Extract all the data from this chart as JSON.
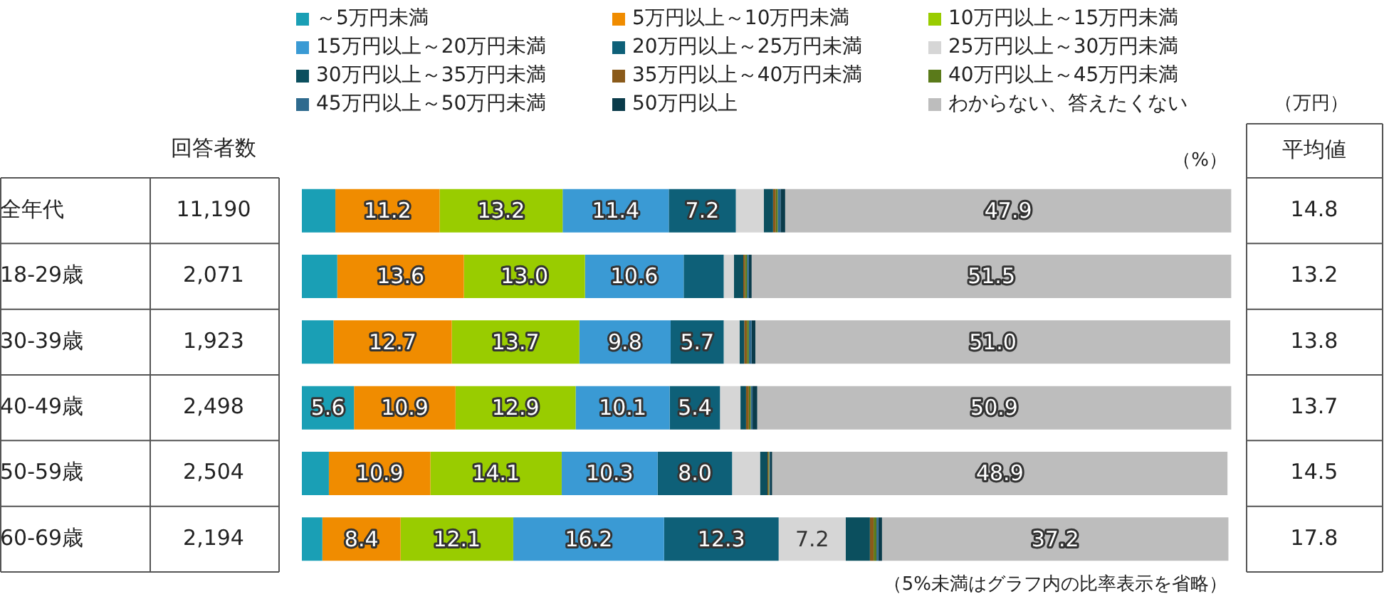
{
  "chart_data": {
    "type": "bar",
    "orientation": "horizontal",
    "stacked": true,
    "tick_labels": "y",
    "grid": false,
    "legend": "top",
    "categories": [
      "全年代",
      "18-29歳",
      "30-39歳",
      "40-49歳",
      "50-59歳",
      "60-69歳"
    ],
    "series": [
      {
        "name": "～5万円未満",
        "color": "#1a9fb5",
        "values": [
          3.6,
          3.8,
          3.4,
          5.6,
          2.9,
          2.2
        ],
        "value_labels": [
          null,
          null,
          null,
          "5.6",
          null,
          null
        ]
      },
      {
        "name": "5万円以上～10万円未満",
        "color": "#f08c00",
        "values": [
          11.2,
          13.6,
          12.7,
          10.9,
          10.9,
          8.4
        ],
        "value_labels": [
          "11.2",
          "13.6",
          "12.7",
          "10.9",
          "10.9",
          "8.4"
        ]
      },
      {
        "name": "10万円以上～15万円未満",
        "color": "#99cc00",
        "values": [
          13.2,
          13.0,
          13.7,
          12.9,
          14.1,
          12.1
        ],
        "value_labels": [
          "13.2",
          "13.0",
          "13.7",
          "12.9",
          "14.1",
          "12.1"
        ]
      },
      {
        "name": "15万円以上～20万円未満",
        "color": "#3a9ad4",
        "values": [
          11.4,
          10.6,
          9.8,
          10.1,
          10.3,
          16.2
        ],
        "value_labels": [
          "11.4",
          "10.6",
          "9.8",
          "10.1",
          "10.3",
          "16.2"
        ]
      },
      {
        "name": "20万円以上～25万円未満",
        "color": "#0e6078",
        "values": [
          7.2,
          4.3,
          5.7,
          5.4,
          8.0,
          12.3
        ],
        "value_labels": [
          "7.2",
          null,
          "5.7",
          "5.4",
          "8.0",
          "12.3"
        ]
      },
      {
        "name": "25万円以上～30万円未満",
        "color": "#d6d6d6",
        "values": [
          3.0,
          1.1,
          1.7,
          2.2,
          3.0,
          7.2
        ],
        "value_labels": [
          null,
          null,
          null,
          null,
          null,
          "7.2"
        ]
      },
      {
        "name": "30万円以上～35万円未満",
        "color": "#0b4f5e",
        "values": [
          1.0,
          1.0,
          0.5,
          0.6,
          0.8,
          2.6
        ],
        "value_labels": [
          null,
          null,
          null,
          null,
          null,
          null
        ]
      },
      {
        "name": "35万円以上～40万円未満",
        "color": "#8a5a1a",
        "values": [
          0.3,
          0.2,
          0.3,
          0.3,
          0.1,
          0.4
        ],
        "value_labels": [
          null,
          null,
          null,
          null,
          null,
          null
        ]
      },
      {
        "name": "40万円以上～45万円未満",
        "color": "#5a7a1a",
        "values": [
          0.2,
          0.2,
          0.2,
          0.2,
          0.1,
          0.3
        ],
        "value_labels": [
          null,
          null,
          null,
          null,
          null,
          null
        ]
      },
      {
        "name": "45万円以上～50万円未満",
        "color": "#2e6a8e",
        "values": [
          0.3,
          0.2,
          0.3,
          0.2,
          0.1,
          0.2
        ],
        "value_labels": [
          null,
          null,
          null,
          null,
          null,
          null
        ]
      },
      {
        "name": "50万円以上",
        "color": "#0a3b4a",
        "values": [
          0.5,
          0.3,
          0.4,
          0.5,
          0.2,
          0.4
        ],
        "value_labels": [
          null,
          null,
          null,
          null,
          null,
          null
        ]
      },
      {
        "name": "わからない、答えたくない",
        "color": "#bdbdbd",
        "values": [
          47.9,
          51.5,
          51.0,
          50.9,
          48.9,
          37.2
        ],
        "value_labels": [
          "47.9",
          "51.5",
          "51.0",
          "50.9",
          "48.9",
          "37.2"
        ]
      }
    ],
    "annotations": [
      "回答者数",
      "11,190",
      "2,071",
      "1,923",
      "2,498",
      "2,504",
      "2,194",
      "（万円）",
      "平均値",
      "14.8",
      "13.2",
      "13.8",
      "13.7",
      "14.5",
      "17.8",
      "（%）",
      "（5%未満はグラフ内の比率表示を省略）"
    ]
  }
}
